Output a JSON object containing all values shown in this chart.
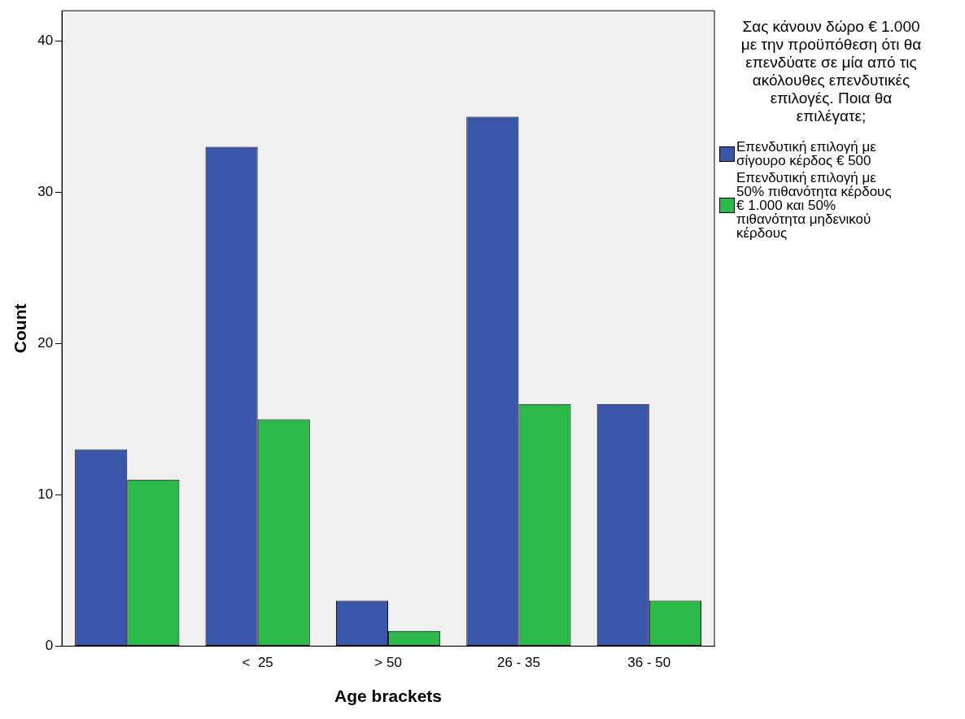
{
  "chart_data": {
    "type": "bar",
    "xlabel": "Age brackets",
    "ylabel": "Count",
    "legend_title": "Σας κάνουν δώρο € 1.000 με την προϋπόθεση ότι θα επενδύατε σε μία από τις ακόλουθες επενδυτικές επιλογές. Ποια θα επιλέγατε;",
    "legend": "right",
    "grid": false,
    "categories": [
      null,
      "<  25",
      "> 50",
      "26 - 35",
      "36 - 50"
    ],
    "ylim": [
      0,
      42
    ],
    "yticks": [
      0,
      10,
      20,
      30,
      40
    ],
    "series": [
      {
        "name": "Επενδυτική επιλογή με σίγουρο κέρδος € 500",
        "color": "#3b55a8",
        "values": [
          13,
          33,
          3,
          35,
          16
        ]
      },
      {
        "name": "Επενδυτική επιλογή με 50% πιθανότητα κέρδους € 1.000 και 50% πιθανότητα μηδενικού κέρδους",
        "color": "#2db84a",
        "values": [
          11,
          15,
          1,
          16,
          3
        ]
      }
    ]
  }
}
